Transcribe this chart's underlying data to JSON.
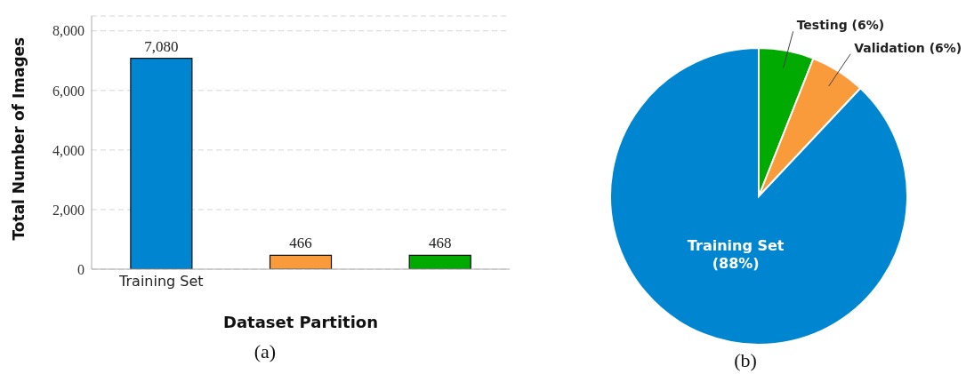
{
  "chart_data": [
    {
      "type": "bar",
      "xlabel": "Dataset Partition",
      "ylabel": "Total Number of Images",
      "categories": [
        "Training Set",
        null,
        null
      ],
      "values": [
        7080,
        466,
        468
      ],
      "colors": [
        "#0086d1",
        "#f99a3b",
        "#00aa00"
      ],
      "ylim": [
        0,
        8500
      ],
      "yticks": [
        {
          "value": 0,
          "label": "0"
        },
        {
          "value": 2000,
          "label": "2,000"
        },
        {
          "value": 4000,
          "label": "4,000"
        },
        {
          "value": 6000,
          "label": "6,000"
        },
        {
          "value": 8000,
          "label": "8,000"
        }
      ],
      "grid": "y",
      "value_labels": [
        "7,080",
        "466",
        "468"
      ],
      "annotations": [
        "(a)"
      ]
    },
    {
      "type": "pie",
      "categories": [
        "Testing",
        "Validation",
        "Training Set"
      ],
      "values": [
        6,
        6,
        88
      ],
      "value_labels": [
        "(6%)",
        "(6%)",
        "(88%)"
      ],
      "colors": [
        "#00aa00",
        "#f99a3b",
        "#0086d1"
      ],
      "annotations": [
        "(b)"
      ]
    }
  ]
}
